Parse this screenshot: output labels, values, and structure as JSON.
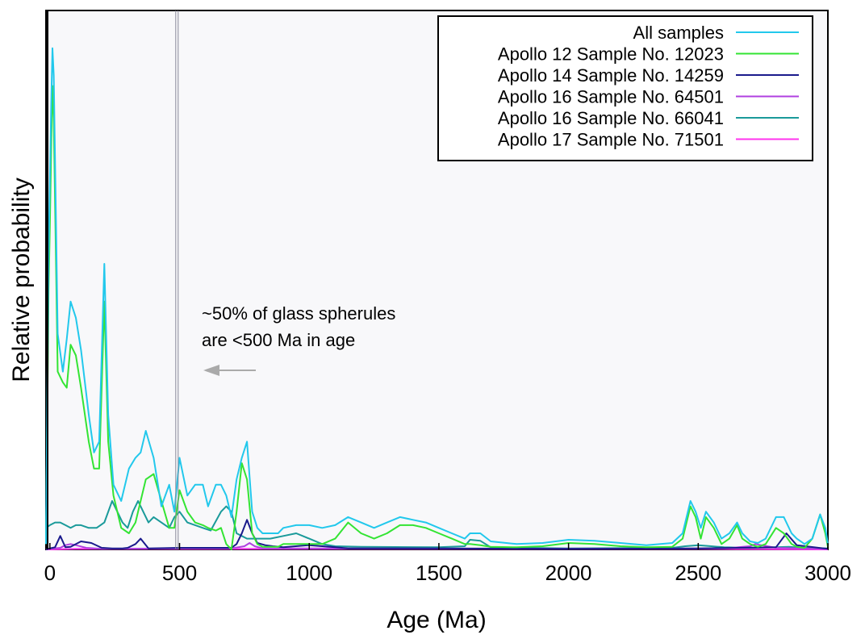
{
  "chart_data": {
    "type": "line",
    "title": "",
    "xlabel": "Age (Ma)",
    "ylabel": "Relative probability",
    "xlim": [
      -15,
      3000
    ],
    "ylim": [
      0,
      1.0
    ],
    "xticks": [
      0,
      500,
      1000,
      1500,
      2000,
      2500,
      3000
    ],
    "tick_labels": [
      "0",
      "500",
      "1000",
      "1500",
      "2000",
      "2500",
      "3000"
    ],
    "legend_position": "top-right",
    "grid": false,
    "annotation": {
      "line1": "~50% of glass spherules",
      "line2": "are <500 Ma in age",
      "arrow_direction": "left",
      "reference_x": 490
    },
    "series": [
      {
        "name": "All samples",
        "color": "#22c8ec",
        "x": [
          -15,
          -5,
          0,
          5,
          10,
          15,
          30,
          50,
          65,
          80,
          100,
          120,
          150,
          170,
          190,
          210,
          225,
          245,
          275,
          305,
          330,
          350,
          370,
          400,
          430,
          460,
          480,
          500,
          530,
          560,
          590,
          610,
          640,
          660,
          680,
          700,
          720,
          740,
          760,
          780,
          800,
          820,
          840,
          860,
          880,
          900,
          950,
          1000,
          1050,
          1100,
          1150,
          1200,
          1250,
          1300,
          1350,
          1400,
          1450,
          1500,
          1550,
          1600,
          1620,
          1660,
          1700,
          1800,
          1900,
          2000,
          2100,
          2200,
          2300,
          2400,
          2440,
          2470,
          2490,
          2510,
          2530,
          2560,
          2590,
          2620,
          2650,
          2670,
          2700,
          2730,
          2760,
          2800,
          2830,
          2860,
          2880,
          2910,
          2940,
          2970,
          2990,
          3000
        ],
        "y": [
          0.01,
          0.55,
          0.68,
          0.82,
          0.93,
          0.88,
          0.4,
          0.33,
          0.39,
          0.46,
          0.43,
          0.37,
          0.25,
          0.18,
          0.2,
          0.53,
          0.25,
          0.12,
          0.09,
          0.15,
          0.17,
          0.18,
          0.22,
          0.17,
          0.08,
          0.12,
          0.07,
          0.17,
          0.1,
          0.12,
          0.12,
          0.08,
          0.12,
          0.12,
          0.1,
          0.06,
          0.13,
          0.17,
          0.2,
          0.07,
          0.04,
          0.03,
          0.03,
          0.03,
          0.03,
          0.04,
          0.045,
          0.045,
          0.04,
          0.045,
          0.06,
          0.05,
          0.04,
          0.05,
          0.06,
          0.055,
          0.05,
          0.04,
          0.03,
          0.02,
          0.03,
          0.03,
          0.015,
          0.01,
          0.012,
          0.018,
          0.016,
          0.012,
          0.008,
          0.012,
          0.03,
          0.09,
          0.07,
          0.04,
          0.07,
          0.05,
          0.02,
          0.03,
          0.05,
          0.03,
          0.015,
          0.012,
          0.02,
          0.06,
          0.06,
          0.03,
          0.02,
          0.01,
          0.02,
          0.065,
          0.04,
          0.01
        ]
      },
      {
        "name": "Apollo 12 Sample No. 12023",
        "color": "#33e433",
        "x": [
          -15,
          -5,
          0,
          5,
          10,
          15,
          30,
          50,
          65,
          80,
          100,
          120,
          150,
          170,
          190,
          210,
          225,
          245,
          275,
          305,
          330,
          350,
          370,
          400,
          430,
          460,
          480,
          500,
          530,
          560,
          590,
          610,
          640,
          660,
          680,
          700,
          720,
          740,
          760,
          780,
          800,
          820,
          840,
          860,
          880,
          900,
          950,
          1000,
          1050,
          1100,
          1150,
          1200,
          1250,
          1300,
          1350,
          1400,
          1450,
          1500,
          1550,
          1600,
          1620,
          1660,
          1700,
          1800,
          1900,
          2000,
          2100,
          2200,
          2300,
          2400,
          2440,
          2470,
          2490,
          2510,
          2530,
          2560,
          2590,
          2620,
          2650,
          2670,
          2700,
          2730,
          2760,
          2800,
          2830,
          2860,
          2880,
          2910,
          2940,
          2970,
          2990,
          3000
        ],
        "y": [
          0.01,
          0.48,
          0.6,
          0.74,
          0.86,
          0.8,
          0.33,
          0.31,
          0.3,
          0.38,
          0.36,
          0.3,
          0.2,
          0.15,
          0.15,
          0.46,
          0.2,
          0.1,
          0.04,
          0.03,
          0.05,
          0.09,
          0.13,
          0.14,
          0.09,
          0.04,
          0.04,
          0.11,
          0.07,
          0.05,
          0.045,
          0.04,
          0.035,
          0.04,
          0.01,
          0.0,
          0.07,
          0.16,
          0.13,
          0.03,
          0.01,
          0.005,
          0.005,
          0.005,
          0.005,
          0.01,
          0.01,
          0.01,
          0.01,
          0.02,
          0.05,
          0.03,
          0.02,
          0.03,
          0.045,
          0.045,
          0.04,
          0.03,
          0.02,
          0.01,
          0.01,
          0.008,
          0.005,
          0.004,
          0.006,
          0.012,
          0.01,
          0.006,
          0.004,
          0.005,
          0.02,
          0.08,
          0.06,
          0.02,
          0.06,
          0.04,
          0.01,
          0.02,
          0.045,
          0.02,
          0.01,
          0.005,
          0.01,
          0.04,
          0.03,
          0.01,
          0.005,
          0.003,
          0.02,
          0.065,
          0.03,
          0.005
        ]
      },
      {
        "name": "Apollo 14 Sample No. 14259",
        "color": "#1a1a8c",
        "x": [
          -15,
          0,
          20,
          40,
          60,
          80,
          120,
          160,
          200,
          240,
          280,
          300,
          330,
          350,
          380,
          500,
          700,
          720,
          740,
          760,
          780,
          800,
          830,
          860,
          900,
          1000,
          1050,
          1100,
          1150,
          1200,
          1500,
          2000,
          2500,
          2800,
          2840,
          2880,
          3000
        ],
        "y": [
          0.0,
          0.002,
          0.004,
          0.025,
          0.004,
          0.005,
          0.015,
          0.012,
          0.003,
          0.002,
          0.002,
          0.003,
          0.01,
          0.02,
          0.002,
          0.003,
          0.003,
          0.01,
          0.03,
          0.055,
          0.03,
          0.012,
          0.008,
          0.006,
          0.004,
          0.008,
          0.006,
          0.004,
          0.002,
          0.002,
          0.002,
          0.001,
          0.002,
          0.004,
          0.03,
          0.008,
          0.001
        ]
      },
      {
        "name": "Apollo 16 Sample No. 64501",
        "color": "#b040e0",
        "x": [
          -15,
          0,
          40,
          60,
          80,
          100,
          140,
          200,
          500,
          700,
          750,
          770,
          790,
          820,
          1000,
          2000,
          2600,
          2700,
          2720,
          2800,
          3000
        ],
        "y": [
          0.0,
          0.001,
          0.003,
          0.008,
          0.01,
          0.008,
          0.003,
          0.001,
          0.002,
          0.002,
          0.006,
          0.012,
          0.006,
          0.002,
          0.002,
          0.001,
          0.002,
          0.006,
          0.01,
          0.003,
          0.001
        ]
      },
      {
        "name": "Apollo 16 Sample No. 66041",
        "color": "#1a9a9a",
        "x": [
          -15,
          0,
          20,
          40,
          60,
          80,
          100,
          120,
          150,
          180,
          210,
          240,
          260,
          280,
          300,
          320,
          340,
          360,
          380,
          400,
          430,
          460,
          480,
          500,
          530,
          560,
          590,
          620,
          660,
          680,
          700,
          720,
          740,
          760,
          780,
          800,
          850,
          900,
          950,
          1000,
          1050,
          1100,
          1200,
          1500,
          1600,
          1620,
          1660,
          1700,
          2000,
          2400,
          2450,
          2500,
          2550,
          2600,
          2700,
          2800,
          2850,
          2900,
          3000
        ],
        "y": [
          0.04,
          0.045,
          0.05,
          0.05,
          0.045,
          0.04,
          0.045,
          0.045,
          0.04,
          0.04,
          0.05,
          0.09,
          0.07,
          0.05,
          0.04,
          0.07,
          0.09,
          0.07,
          0.05,
          0.06,
          0.05,
          0.04,
          0.06,
          0.07,
          0.05,
          0.045,
          0.04,
          0.035,
          0.07,
          0.08,
          0.07,
          0.03,
          0.025,
          0.02,
          0.02,
          0.02,
          0.02,
          0.025,
          0.03,
          0.02,
          0.01,
          0.006,
          0.005,
          0.004,
          0.006,
          0.018,
          0.016,
          0.004,
          0.002,
          0.003,
          0.006,
          0.008,
          0.006,
          0.004,
          0.003,
          0.004,
          0.005,
          0.003,
          0.002
        ]
      },
      {
        "name": "Apollo 17 Sample No. 71501",
        "color": "#ff33ee",
        "x": [
          -15,
          0,
          100,
          500,
          1000,
          1500,
          2000,
          2500,
          3000
        ],
        "y": [
          0.0,
          0.0,
          0.001,
          0.001,
          0.001,
          0.001,
          0.001,
          0.001,
          0.0
        ]
      }
    ]
  }
}
